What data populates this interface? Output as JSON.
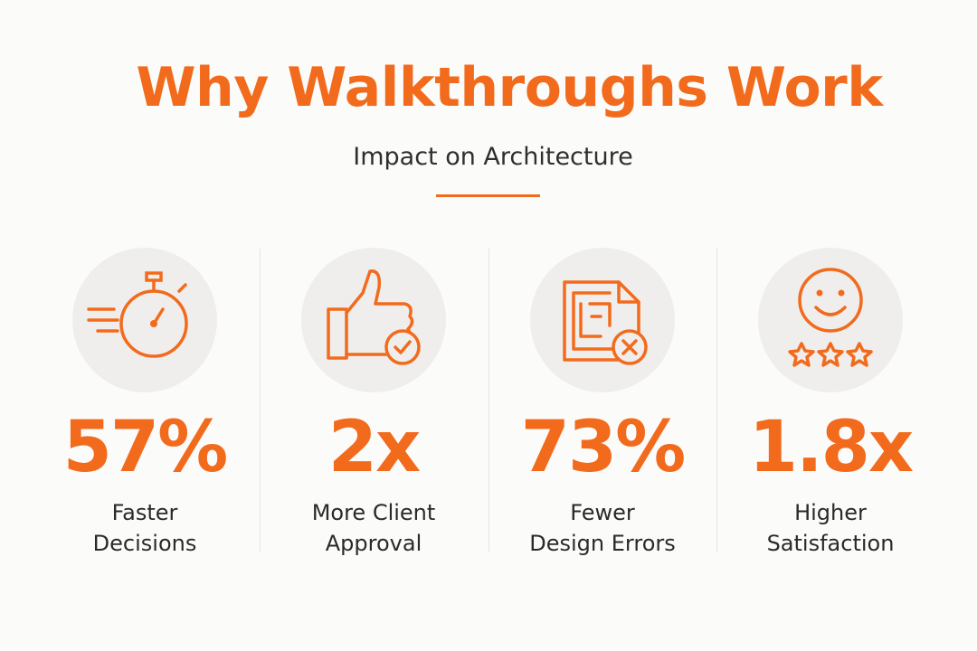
{
  "header": {
    "title": "Why Walkthroughs Work",
    "subtitle": "Impact on Architecture"
  },
  "stats": [
    {
      "value": "57%",
      "label_lines": [
        "Faster",
        "Decisions"
      ]
    },
    {
      "value": "2x",
      "label_lines": [
        "More Client",
        "Approval"
      ]
    },
    {
      "value": "73%",
      "label_lines": [
        "Fewer",
        "Design Errors"
      ]
    },
    {
      "value": "1.8x",
      "label_lines": [
        "Higher",
        "Satisfaction"
      ]
    }
  ]
}
